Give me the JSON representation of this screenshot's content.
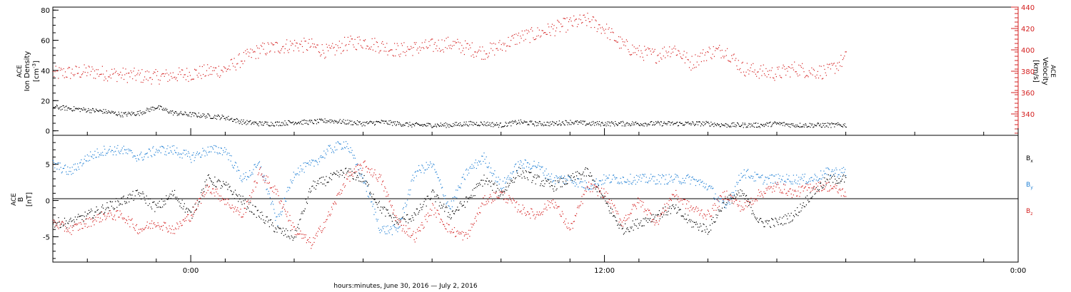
{
  "chart_data": [
    {
      "type": "scatter",
      "ylabel_left": "ACE Ion Density",
      "ylabel_left_unit": "[cm^-3]",
      "ylabel_right": "ACE Velocity",
      "ylabel_right_unit": "[km/s]",
      "ylim_left": [
        -3,
        82
      ],
      "ylim_right": [
        320,
        440
      ],
      "yticks_left": [
        "0",
        "20",
        "40",
        "60",
        "80"
      ],
      "yticks_right": [
        "340",
        "360",
        "380",
        "400",
        "420",
        "440"
      ],
      "series": [
        {
          "color": "#d42020",
          "axis": "right",
          "x": [
            -4.0,
            -3.0,
            -2.0,
            -1.0,
            0.0,
            1.0,
            1.5,
            2.0,
            2.5,
            3.0,
            3.5,
            4.0,
            4.5,
            5.0,
            5.5,
            6.0,
            6.5,
            7.0,
            7.5,
            8.0,
            8.5,
            9.0,
            9.5,
            10.0,
            10.5,
            11.0,
            11.5,
            12.0,
            12.5,
            13.0,
            13.5,
            14.0,
            14.5,
            15.0,
            15.5,
            16.0,
            16.5,
            17.0,
            17.5,
            18.0,
            18.5,
            19.0
          ],
          "y": [
            378,
            380,
            377,
            375,
            378,
            382,
            392,
            400,
            403,
            405,
            404,
            398,
            406,
            408,
            404,
            400,
            402,
            404,
            406,
            402,
            398,
            404,
            412,
            415,
            420,
            425,
            428,
            420,
            405,
            398,
            395,
            402,
            388,
            398,
            400,
            383,
            380,
            378,
            383,
            380,
            380,
            393
          ]
        },
        {
          "color": "#000000",
          "axis": "left",
          "x": [
            -4.0,
            -3.5,
            -3.0,
            -2.5,
            -2.0,
            -1.5,
            -1.0,
            -0.5,
            0.0,
            0.5,
            1.0,
            1.5,
            2.0,
            2.5,
            3.0,
            3.5,
            4.0,
            4.5,
            5.0,
            5.5,
            6.0,
            6.5,
            7.0,
            7.5,
            8.0,
            8.5,
            9.0,
            9.5,
            10.0,
            10.5,
            11.0,
            11.5,
            12.0,
            12.5,
            13.0,
            13.5,
            14.0,
            14.5,
            15.0,
            15.5,
            16.0,
            16.5,
            17.0,
            17.5,
            18.0,
            18.5,
            19.0
          ],
          "y": [
            16,
            15,
            14,
            13,
            11,
            12,
            16,
            12,
            11,
            10,
            9,
            6,
            5,
            5,
            6,
            6,
            7,
            6,
            5,
            6,
            5,
            4,
            4,
            4,
            5,
            5,
            4,
            6,
            5,
            5,
            6,
            5,
            5,
            5,
            5,
            5,
            5,
            5,
            5,
            4,
            4,
            4,
            5,
            4,
            4,
            4,
            4
          ]
        }
      ]
    },
    {
      "type": "scatter",
      "ylabel": "ACE B",
      "ylabel_unit": "[nT]",
      "ylim": [
        -8.5,
        9
      ],
      "yticks": [
        "-5",
        "0",
        "5"
      ],
      "legend": [
        "Bx",
        "By",
        "Bz"
      ],
      "legend_placement": "right",
      "series": [
        {
          "name": "Bx",
          "color": "#000000",
          "x": [
            -4.0,
            -3.5,
            -3.0,
            -2.5,
            -2.0,
            -1.5,
            -1.0,
            -0.5,
            0.0,
            0.5,
            1.0,
            1.5,
            2.0,
            2.5,
            3.0,
            3.5,
            4.0,
            4.5,
            5.0,
            5.5,
            6.0,
            6.5,
            7.0,
            7.5,
            8.0,
            8.5,
            9.0,
            9.5,
            10.0,
            10.5,
            11.0,
            11.5,
            12.0,
            12.5,
            13.0,
            13.5,
            14.0,
            14.5,
            15.0,
            15.5,
            16.0,
            16.5,
            17.0,
            17.5,
            18.0,
            18.5,
            19.0
          ],
          "y": [
            -3,
            -3,
            -2,
            -1,
            0,
            1,
            -1,
            1,
            -2,
            3,
            2,
            0,
            -2,
            -4,
            -5,
            2,
            3,
            4,
            3,
            -1,
            -3,
            -2,
            1,
            -2,
            0,
            3,
            1,
            4,
            3,
            2,
            3,
            4,
            0,
            -4,
            -3,
            -2,
            -1,
            -3,
            -4,
            0,
            1,
            -3,
            -3,
            -2,
            1,
            3,
            3
          ]
        },
        {
          "name": "By",
          "color": "#1f7fd4",
          "x": [
            -4.0,
            -3.5,
            -3.0,
            -2.5,
            -2.0,
            -1.5,
            -1.0,
            -0.5,
            0.0,
            0.5,
            1.0,
            1.5,
            2.0,
            2.5,
            3.0,
            3.5,
            4.0,
            4.5,
            5.0,
            5.5,
            6.0,
            6.5,
            7.0,
            7.5,
            8.0,
            8.5,
            9.0,
            9.5,
            10.0,
            10.5,
            11.0,
            11.5,
            12.0,
            12.5,
            13.0,
            13.5,
            14.0,
            14.5,
            15.0,
            15.5,
            16.0,
            16.5,
            17.0,
            17.5,
            18.0,
            18.5,
            19.0
          ],
          "y": [
            5,
            4,
            6,
            7,
            7,
            6,
            7,
            7,
            6,
            7,
            7,
            3,
            5,
            -3,
            4,
            5,
            7,
            8,
            3,
            -4,
            -4,
            4,
            5,
            -1,
            4,
            6,
            2,
            5,
            5,
            3,
            3,
            2,
            3,
            3,
            3,
            3,
            3,
            3,
            2,
            -1,
            4,
            3,
            3,
            3,
            3,
            4,
            4
          ]
        },
        {
          "name": "Bz",
          "color": "#d42020",
          "x": [
            -4.0,
            -3.5,
            -3.0,
            -2.5,
            -2.0,
            -1.5,
            -1.0,
            -0.5,
            0.0,
            0.5,
            1.0,
            1.5,
            2.0,
            2.5,
            3.0,
            3.5,
            4.0,
            4.5,
            5.0,
            5.5,
            6.0,
            6.5,
            7.0,
            7.5,
            8.0,
            8.5,
            9.0,
            9.5,
            10.0,
            10.5,
            11.0,
            11.5,
            12.0,
            12.5,
            13.0,
            13.5,
            14.0,
            14.5,
            15.0,
            15.5,
            16.0,
            16.5,
            17.0,
            17.5,
            18.0,
            18.5,
            19.0
          ],
          "y": [
            -3,
            -4,
            -3,
            -2,
            -2,
            -4,
            -3,
            -4,
            -2,
            2,
            0,
            -2,
            4,
            1,
            -4,
            -6,
            -2,
            3,
            5,
            3,
            -3,
            -5,
            -1,
            -4,
            -5,
            0,
            1,
            -1,
            -2,
            0,
            -4,
            2,
            1,
            -3,
            0,
            -3,
            1,
            -1,
            -2,
            1,
            -1,
            1,
            2,
            1,
            2,
            2,
            1
          ]
        }
      ]
    }
  ],
  "x_axis": {
    "range_hours": [
      -4,
      24
    ],
    "ticks": [
      {
        "x": 0,
        "label": "0:00"
      },
      {
        "x": 12,
        "label": "12:00"
      },
      {
        "x": 24,
        "label": "0:00"
      }
    ],
    "xlabel": "hours:minutes, June 30, 2016 — July  2, 2016"
  }
}
